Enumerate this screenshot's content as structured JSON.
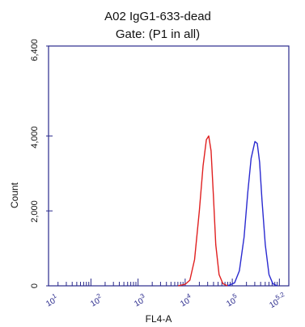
{
  "chart_data": {
    "type": "line",
    "title": "A02 IgG1-633-dead",
    "subtitle": "Gate: (P1 in all)",
    "xlabel": "FL4-A",
    "ylabel": "Count",
    "xscale": "log",
    "xlim": [
      0.1,
      5.2
    ],
    "ylim": [
      0,
      6400
    ],
    "x_ticks": [
      {
        "value": 1,
        "label": "10^1"
      },
      {
        "value": 2,
        "label": "10^2"
      },
      {
        "value": 3,
        "label": "10^3"
      },
      {
        "value": 4,
        "label": "10^4"
      },
      {
        "value": 5,
        "label": "10^5"
      },
      {
        "value": 5.2,
        "label": "10^5.2"
      }
    ],
    "y_ticks": [
      {
        "value": 0,
        "label": "0"
      },
      {
        "value": 2000,
        "label": "2,000"
      },
      {
        "value": 4000,
        "label": "4,000"
      },
      {
        "value": 6400,
        "label": "6,400"
      }
    ],
    "grid": false,
    "series": [
      {
        "color": "#e02020",
        "x": [
          2.85,
          3.0,
          3.1,
          3.2,
          3.3,
          3.38,
          3.45,
          3.5,
          3.55,
          3.6,
          3.65,
          3.72,
          3.8,
          3.9
        ],
        "y": [
          0,
          40,
          150,
          700,
          2000,
          3200,
          3900,
          4000,
          3600,
          2400,
          1100,
          300,
          60,
          0
        ]
      },
      {
        "color": "#2a2ad0",
        "x": [
          3.9,
          4.05,
          4.15,
          4.25,
          4.33,
          4.4,
          4.48,
          4.53,
          4.58,
          4.63,
          4.7,
          4.78,
          4.86,
          4.95
        ],
        "y": [
          0,
          80,
          400,
          1300,
          2500,
          3400,
          3850,
          3800,
          3300,
          2300,
          1100,
          300,
          60,
          0
        ]
      }
    ]
  },
  "text": {
    "title": "A02 IgG1-633-dead",
    "subtitle": "Gate: (P1 in all)",
    "xlabel": "FL4-A",
    "ylabel": "Count",
    "xt1": "1",
    "xt2": "2",
    "xt3": "3",
    "xt4": "4",
    "xt5": "5",
    "xt6": "5.2",
    "yt0": "0",
    "yt1": "2,000",
    "yt2": "4,000",
    "yt3": "6,400"
  },
  "colors": {
    "axis": "#2a2a8c",
    "red_series": "#e02020",
    "blue_series": "#2a2ad0"
  }
}
